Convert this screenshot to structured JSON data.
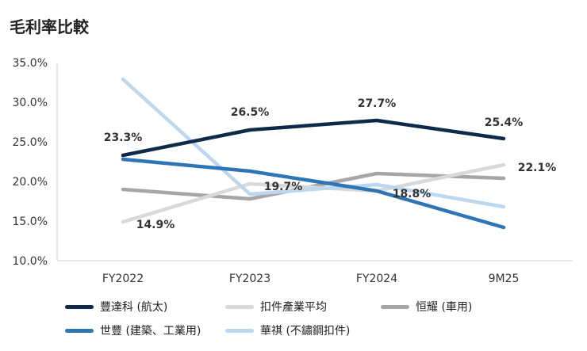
{
  "chart_data": {
    "type": "line",
    "title": "毛利率比較",
    "categories": [
      "FY2022",
      "FY2023",
      "FY2024",
      "9M25"
    ],
    "ylim": [
      10.0,
      35.0
    ],
    "yticks": [
      "35.0%",
      "30.0%",
      "25.0%",
      "20.0%",
      "15.0%",
      "10.0%"
    ],
    "ytick_values": [
      35,
      30,
      25,
      20,
      15,
      10
    ],
    "series": [
      {
        "name": "豐達科 (航太)",
        "color": "#0e2a4a",
        "values": [
          23.3,
          26.5,
          27.7,
          25.4
        ]
      },
      {
        "name": "扣件產業平均",
        "color": "#d9d9d9",
        "values": [
          14.9,
          19.7,
          18.8,
          22.1
        ]
      },
      {
        "name": "恒耀 (車用)",
        "color": "#a6a6a6",
        "values": [
          19.0,
          17.8,
          21.0,
          20.4
        ]
      },
      {
        "name": "世豐 (建築、工業用)",
        "color": "#2e75b6",
        "values": [
          22.8,
          21.3,
          18.8,
          14.2
        ]
      },
      {
        "name": "華祺 (不鏽鋼扣件)",
        "color": "#bdd7ee",
        "values": [
          32.9,
          18.4,
          19.6,
          16.8
        ]
      }
    ],
    "data_labels": [
      {
        "text": "23.3%"
      },
      {
        "text": "26.5%"
      },
      {
        "text": "27.7%"
      },
      {
        "text": "25.4%"
      },
      {
        "text": "14.9%"
      },
      {
        "text": "19.7%"
      },
      {
        "text": "18.8%"
      },
      {
        "text": "22.1%"
      }
    ]
  }
}
